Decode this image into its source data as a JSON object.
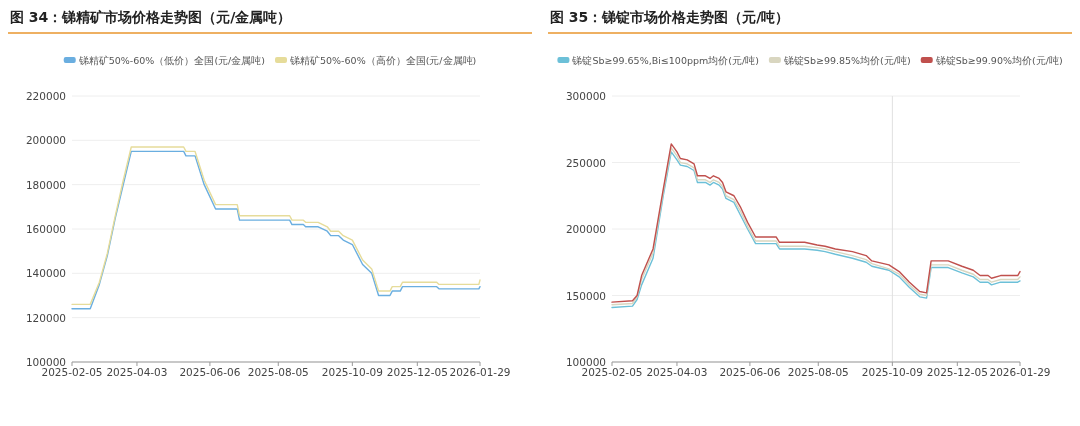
{
  "chart_data": [
    {
      "type": "line",
      "title": "图 34：锑精矿市场价格走势图（元/金属吨）",
      "legend": "top",
      "grid": "y",
      "marker": "none",
      "line_style": "solid",
      "xlim": [
        "2025-02-05",
        "2026-01-29"
      ],
      "xticks": [
        "2025-02-05",
        "2025-04-03",
        "2025-06-06",
        "2025-08-05",
        "2025-10-09",
        "2025-12-05",
        "2026-01-29"
      ],
      "ylim": [
        100000,
        220000
      ],
      "yticks": [
        100000,
        120000,
        140000,
        160000,
        180000,
        200000,
        220000
      ],
      "x": [
        "2025-02-05",
        "2025-02-21",
        "2025-03-01",
        "2025-03-08",
        "2025-03-15",
        "2025-03-22",
        "2025-03-29",
        "2025-05-14",
        "2025-05-16",
        "2025-05-24",
        "2025-06-01",
        "2025-06-11",
        "2025-06-30",
        "2025-07-02",
        "2025-08-15",
        "2025-08-17",
        "2025-08-27",
        "2025-08-29",
        "2025-09-09",
        "2025-09-17",
        "2025-09-20",
        "2025-09-27",
        "2025-10-01",
        "2025-10-09",
        "2025-10-18",
        "2025-10-26",
        "2025-11-01",
        "2025-11-11",
        "2025-11-13",
        "2025-11-20",
        "2025-11-22",
        "2025-12-22",
        "2025-12-24",
        "2026-01-28",
        "2026-01-29"
      ],
      "series": [
        {
          "name": "锑精矿50%-60%（低价）全国(元/金属吨)",
          "color": "#6aaee0",
          "values": [
            124000,
            124000,
            135000,
            148000,
            165000,
            180000,
            195000,
            195000,
            193000,
            193000,
            180000,
            169000,
            169000,
            164000,
            164000,
            162000,
            162000,
            161000,
            161000,
            159000,
            157000,
            157000,
            155000,
            153000,
            144000,
            140000,
            130000,
            130000,
            132000,
            132000,
            134000,
            134000,
            133000,
            133000,
            134000
          ]
        },
        {
          "name": "锑精矿50%-60%（高价）全国(元/金属吨)",
          "color": "#e6dc9a",
          "values": [
            126000,
            126000,
            136000,
            149000,
            166000,
            182000,
            197000,
            197000,
            195000,
            195000,
            182000,
            171000,
            171000,
            166000,
            166000,
            164000,
            164000,
            163000,
            163000,
            161000,
            159000,
            159000,
            157000,
            155000,
            146000,
            142000,
            132000,
            132000,
            134000,
            134000,
            136000,
            136000,
            135000,
            135000,
            137000
          ]
        }
      ]
    },
    {
      "type": "line",
      "title": "图 35：锑锭市场价格走势图（元/吨）",
      "legend": "top",
      "grid": "y",
      "marker": "none",
      "line_style": "solid",
      "xlim": [
        "2025-02-05",
        "2026-01-29"
      ],
      "xticks": [
        "2025-02-05",
        "2025-04-03",
        "2025-06-06",
        "2025-08-05",
        "2025-10-09",
        "2025-12-05",
        "2026-01-29"
      ],
      "ylim": [
        100000,
        300000
      ],
      "yticks": [
        100000,
        150000,
        200000,
        250000,
        300000
      ],
      "ref_lines": [
        {
          "axis": "x",
          "value": "2025-10-09",
          "color": "#e0e0e0"
        }
      ],
      "x": [
        "2025-02-05",
        "2025-02-23",
        "2025-02-27",
        "2025-03-03",
        "2025-03-13",
        "2025-03-22",
        "2025-03-29",
        "2025-04-03",
        "2025-04-06",
        "2025-04-12",
        "2025-04-18",
        "2025-04-21",
        "2025-04-28",
        "2025-05-02",
        "2025-05-05",
        "2025-05-10",
        "2025-05-13",
        "2025-05-16",
        "2025-05-23",
        "2025-05-29",
        "2025-06-04",
        "2025-06-11",
        "2025-06-29",
        "2025-07-02",
        "2025-07-24",
        "2025-08-04",
        "2025-08-11",
        "2025-08-20",
        "2025-09-04",
        "2025-09-16",
        "2025-09-21",
        "2025-10-06",
        "2025-10-15",
        "2025-10-24",
        "2025-11-02",
        "2025-11-08",
        "2025-11-12",
        "2025-11-27",
        "2025-12-09",
        "2025-12-19",
        "2025-12-25",
        "2026-01-01",
        "2026-01-04",
        "2026-01-12",
        "2026-01-27",
        "2026-01-29"
      ],
      "series": [
        {
          "name": "锑锭Sb≥99.65%,Bi≤100ppm均价(元/吨)",
          "color": "#6cc0d8",
          "values": [
            141000,
            142000,
            147000,
            158000,
            178000,
            225000,
            258000,
            252000,
            248000,
            247000,
            244000,
            235000,
            235000,
            233000,
            235000,
            233000,
            230000,
            223000,
            220000,
            210000,
            200000,
            189000,
            189000,
            185000,
            185000,
            184000,
            183000,
            181000,
            178000,
            175000,
            172000,
            169000,
            164000,
            156000,
            149000,
            148000,
            171000,
            171000,
            167000,
            164000,
            160000,
            160000,
            158000,
            160000,
            160000,
            161000
          ]
        },
        {
          "name": "锑锭Sb≥99.85%均价(元/吨)",
          "color": "#d9d6c0",
          "values": [
            143000,
            144000,
            149000,
            162000,
            182000,
            228000,
            261000,
            255000,
            250000,
            249000,
            246000,
            237000,
            237000,
            235000,
            237000,
            235000,
            232000,
            225000,
            222000,
            213000,
            202000,
            191000,
            191000,
            187000,
            187000,
            186000,
            185000,
            183000,
            180000,
            177000,
            174000,
            170000,
            166000,
            158000,
            151000,
            150000,
            173000,
            173000,
            169000,
            166000,
            162000,
            162000,
            160000,
            162000,
            162000,
            164000
          ]
        },
        {
          "name": "锑锭Sb≥99.90%均价(元/吨)",
          "color": "#c0504d",
          "values": [
            145000,
            146000,
            150000,
            165000,
            185000,
            230000,
            264000,
            258000,
            253000,
            252000,
            249000,
            240000,
            240000,
            238000,
            240000,
            238000,
            235000,
            228000,
            225000,
            216000,
            205000,
            194000,
            194000,
            190000,
            190000,
            188000,
            187000,
            185000,
            183000,
            180000,
            176000,
            173000,
            168000,
            160000,
            153000,
            152000,
            176000,
            176000,
            172000,
            169000,
            165000,
            165000,
            163000,
            165000,
            165000,
            168000
          ]
        }
      ]
    }
  ]
}
